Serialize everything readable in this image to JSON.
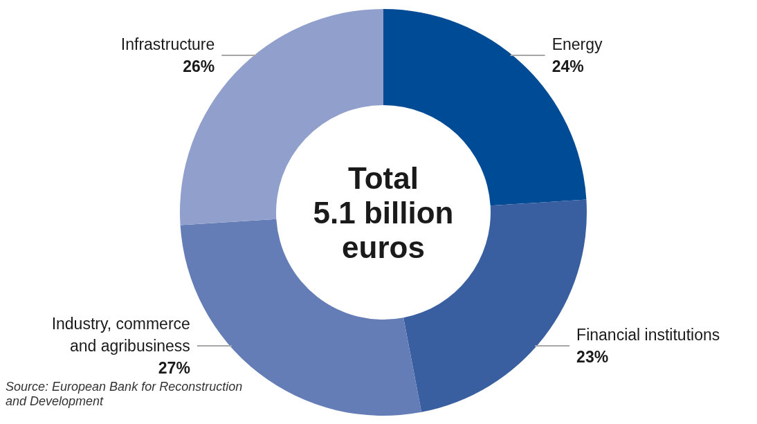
{
  "chart_data": {
    "type": "donut",
    "title": "Total",
    "subtitle": "5.1 billion euros",
    "categories": [
      "Energy",
      "Financial institutions",
      "Industry, commerce and agribusiness",
      "Infrastructure"
    ],
    "values": [
      24,
      23,
      27,
      26
    ],
    "colors": [
      "#004b96",
      "#3a5fa0",
      "#657db6",
      "#909fcb"
    ],
    "value_labels": [
      "24%",
      "23%",
      "27%",
      "26%"
    ],
    "annotations": [
      "Source: European Bank for Reconstruction and Development"
    ]
  }
}
